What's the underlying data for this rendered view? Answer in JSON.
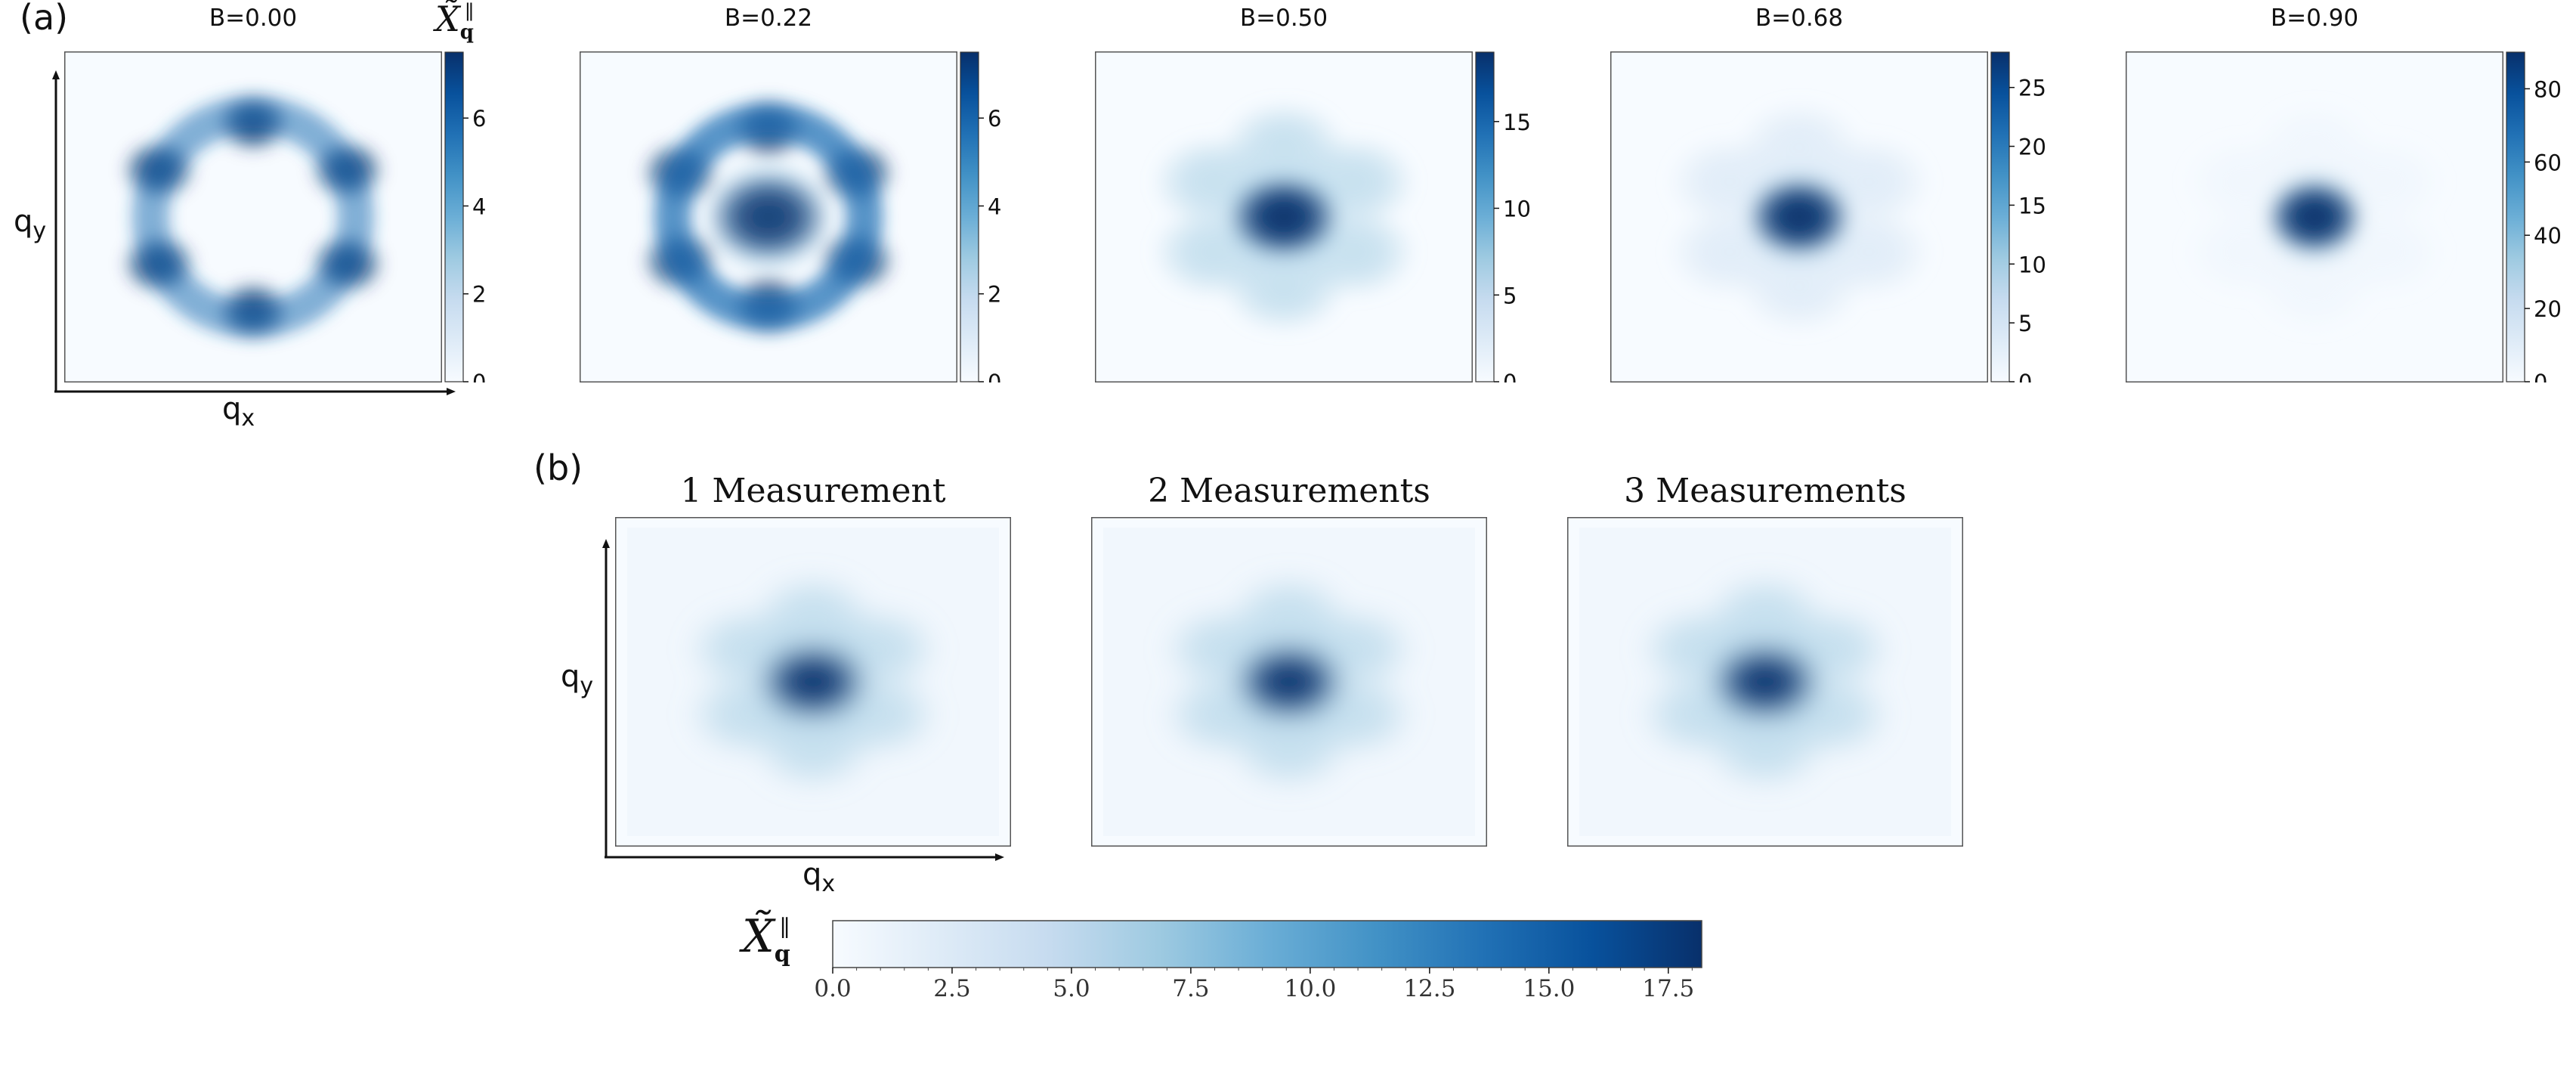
{
  "panel_a": {
    "label": "(a)",
    "colorbar_symbol": "X̃",
    "colorbar_symbol_sub": "q",
    "colorbar_symbol_sup": "∥",
    "xlabel": "q",
    "xlabel_sub": "x",
    "ylabel": "q",
    "ylabel_sub": "y"
  },
  "panel_b": {
    "label": "(b)",
    "xlabel": "q",
    "xlabel_sub": "x",
    "ylabel": "q",
    "ylabel_sub": "y"
  },
  "colors": {
    "low": "#f7fbff",
    "mid": "#6baed6",
    "high": "#08306b"
  },
  "chart_data": [
    {
      "type": "heatmap",
      "title": "B=0.00",
      "colorbar_ticks": [
        "0",
        "2",
        "4",
        "6"
      ],
      "colorbar_max": 7.5,
      "pattern": "ring",
      "peak_value": 7.5
    },
    {
      "type": "heatmap",
      "title": "B=0.22",
      "colorbar_ticks": [
        "0",
        "2",
        "4",
        "6"
      ],
      "colorbar_max": 7.5,
      "pattern": "ring-with-center",
      "peak_value": 7.0
    },
    {
      "type": "heatmap",
      "title": "B=0.50",
      "colorbar_ticks": [
        "0",
        "5",
        "10",
        "15"
      ],
      "colorbar_max": 19,
      "pattern": "center-with-weak-ring",
      "peak_value": 19
    },
    {
      "type": "heatmap",
      "title": "B=0.68",
      "colorbar_ticks": [
        "0",
        "5",
        "10",
        "15",
        "20",
        "25"
      ],
      "colorbar_max": 28,
      "pattern": "center-with-faint-ring",
      "peak_value": 28
    },
    {
      "type": "heatmap",
      "title": "B=0.90",
      "colorbar_ticks": [
        "0",
        "20",
        "40",
        "60",
        "80"
      ],
      "colorbar_max": 90,
      "pattern": "center",
      "peak_value": 90
    },
    {
      "type": "heatmap",
      "title": "1 Measurement",
      "pattern": "center-with-weak-ring",
      "peak_value": 18
    },
    {
      "type": "heatmap",
      "title": "2 Measurements",
      "pattern": "center-with-weak-ring",
      "peak_value": 18
    },
    {
      "type": "heatmap",
      "title": "3 Measurements",
      "pattern": "center-with-weak-ring",
      "peak_value": 18
    },
    {
      "type": "colorbar",
      "orientation": "horizontal",
      "label": "X̃",
      "ticks": [
        "0.0",
        "2.5",
        "5.0",
        "7.5",
        "10.0",
        "12.5",
        "15.0",
        "17.5"
      ],
      "range": [
        0,
        18.2
      ]
    }
  ]
}
